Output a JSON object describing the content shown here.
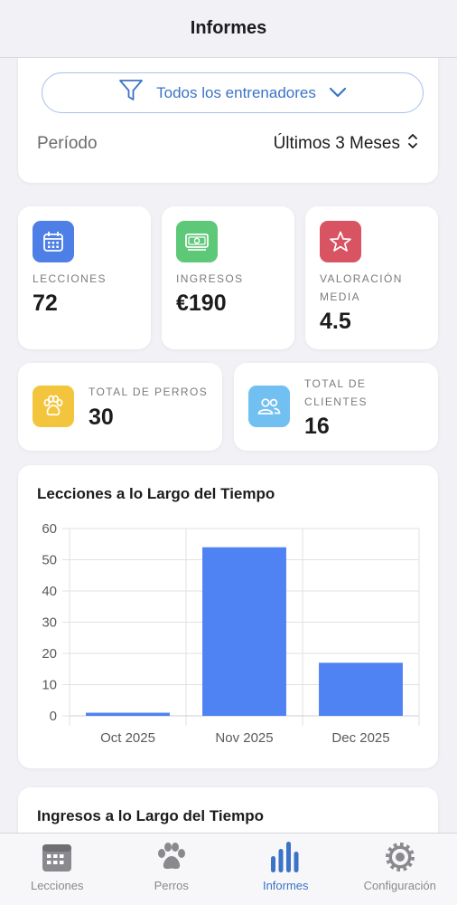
{
  "header": {
    "title": "Informes"
  },
  "filter": {
    "trainer_label": "Todos los entrenadores",
    "period_label": "Período",
    "period_value": "Últimos 3 Meses"
  },
  "stats": {
    "lessons": {
      "label": "LECCIONES",
      "value": "72",
      "color": "#4e7fe6"
    },
    "income": {
      "label": "INGRESOS",
      "value": "€190",
      "color": "#5dc878"
    },
    "rating": {
      "label_line1": "VALORACIÓN",
      "label_line2": "MEDIA",
      "value": "4.5",
      "color": "#d85462"
    },
    "dogs": {
      "label": "TOTAL DE PERROS",
      "value": "30",
      "color": "#f3c53c"
    },
    "clients": {
      "label_line1": "TOTAL DE",
      "label_line2": "CLIENTES",
      "value": "16",
      "color": "#72bff2"
    }
  },
  "chart_data": {
    "type": "bar",
    "title": "Lecciones a lo Largo del Tiempo",
    "categories": [
      "Oct 2025",
      "Nov 2025",
      "Dec 2025"
    ],
    "values": [
      1,
      54,
      17
    ],
    "ylim": [
      0,
      60
    ],
    "yticks": [
      "0",
      "10",
      "20",
      "30",
      "40",
      "50",
      "60"
    ],
    "bar_color": "#4f82f2",
    "grid": true
  },
  "chart2": {
    "title": "Ingresos a lo Largo del Tiempo"
  },
  "tabs": [
    {
      "label": "Lecciones",
      "icon": "calendar-icon",
      "active": false
    },
    {
      "label": "Perros",
      "icon": "paw-icon",
      "active": false
    },
    {
      "label": "Informes",
      "icon": "bar-chart-icon",
      "active": true
    },
    {
      "label": "Configuración",
      "icon": "gear-icon",
      "active": false
    }
  ],
  "colors": {
    "accent": "#3b73c7",
    "tab_inactive": "#8a8a8e"
  }
}
